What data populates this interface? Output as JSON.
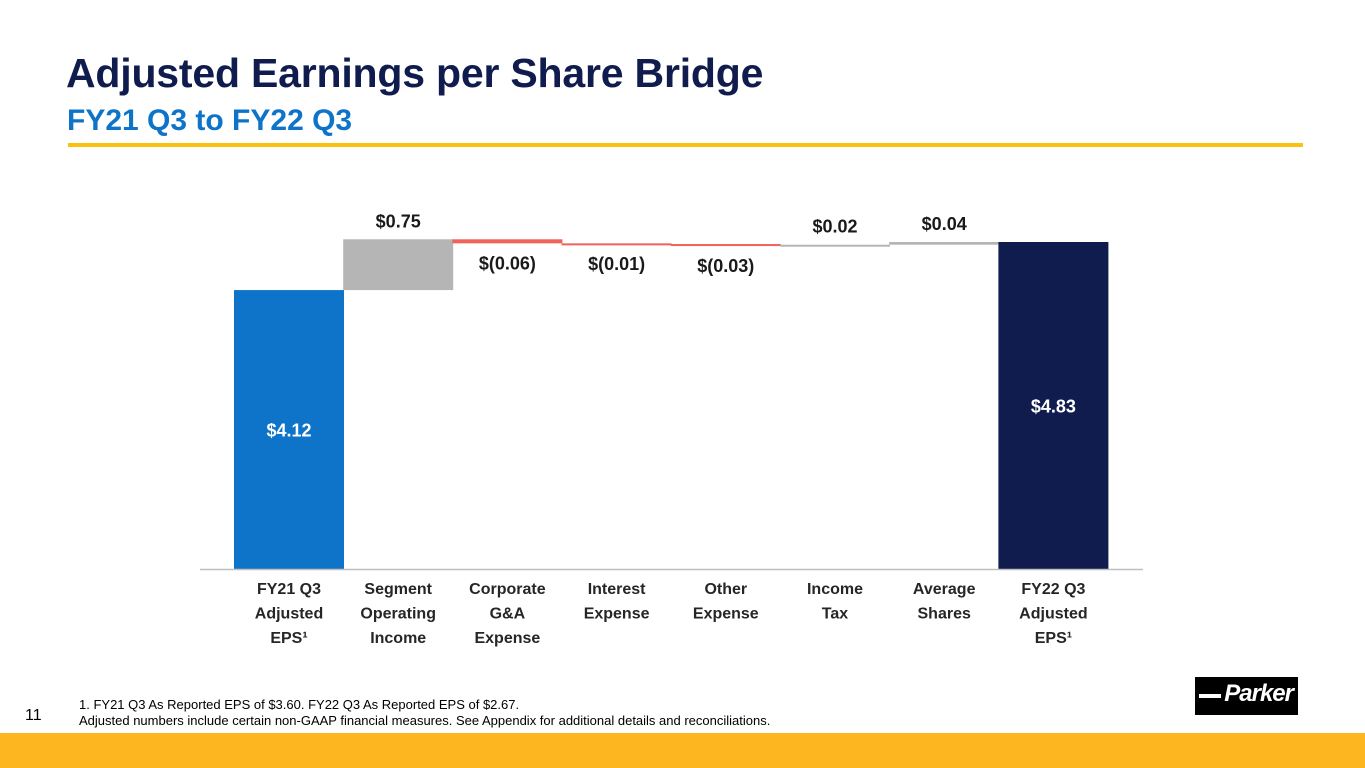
{
  "slide": {
    "title": "Adjusted Earnings per Share Bridge",
    "subtitle": "FY21 Q3 to FY22 Q3",
    "page_number": "11",
    "footnote_line1": "1. FY21 Q3 As Reported EPS of $3.60. FY22 Q3 As Reported EPS of $2.67.",
    "footnote_line2": "Adjusted numbers include certain non-GAAP financial measures. See Appendix for additional details and reconciliations.",
    "logo_text": "Parker"
  },
  "colors": {
    "title": "#0f1c4d",
    "subtitle": "#0d74c9",
    "start_bar": "#0d74c9",
    "end_bar": "#0f1c4d",
    "increase": "#b5b5b5",
    "decrease": "#f0635a",
    "accent_gold": "#f9c20f",
    "footer_band": "#fdb620"
  },
  "chart_data": {
    "type": "waterfall",
    "ylim": [
      0,
      5.3
    ],
    "categories": [
      [
        "FY21 Q3",
        "Adjusted",
        "EPS¹"
      ],
      [
        "Segment",
        "Operating",
        "Income"
      ],
      [
        "Corporate",
        "G&A",
        "Expense"
      ],
      [
        "Interest",
        "Expense"
      ],
      [
        "Other",
        "Expense"
      ],
      [
        "Income",
        "Tax"
      ],
      [
        "Average",
        "Shares"
      ],
      [
        "FY22 Q3",
        "Adjusted",
        "EPS¹"
      ]
    ],
    "values": [
      4.12,
      0.75,
      -0.06,
      -0.01,
      -0.03,
      0.02,
      0.04,
      4.83
    ],
    "kinds": [
      "total",
      "increase",
      "decrease",
      "decrease",
      "decrease",
      "increase",
      "increase",
      "total"
    ],
    "labels": [
      "$4.12",
      "$0.75",
      "$(0.06)",
      "$(0.01)",
      "$(0.03)",
      "$0.02",
      "$0.04",
      "$4.83"
    ]
  }
}
